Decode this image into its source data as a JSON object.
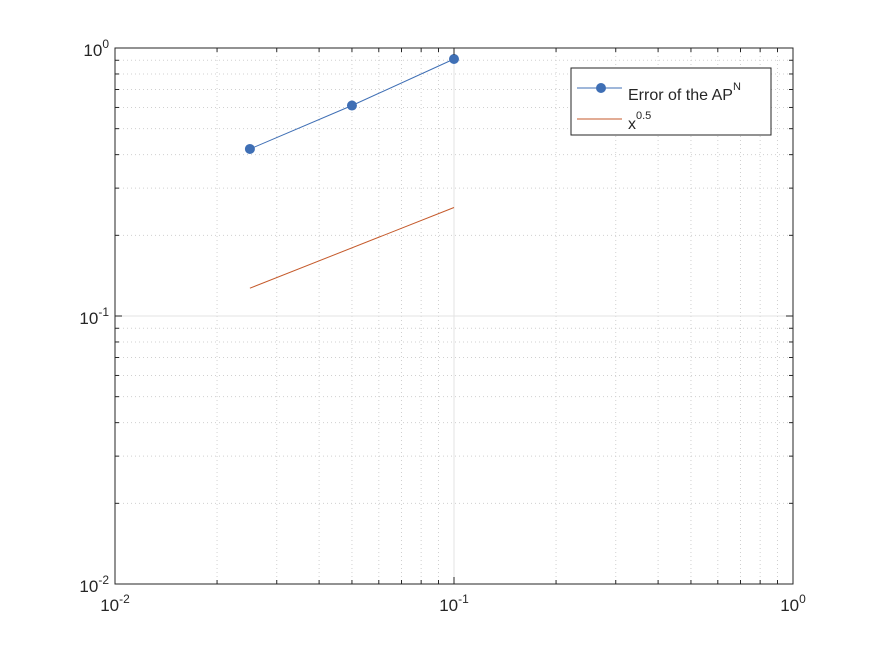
{
  "chart_data": {
    "type": "line",
    "title": "",
    "xlabel": "",
    "ylabel": "",
    "xscale": "log",
    "yscale": "log",
    "xlim": [
      0.01,
      1
    ],
    "ylim": [
      0.01,
      1
    ],
    "grid": true,
    "minor_grid": true,
    "legend_location": "top-right",
    "x_ticks": [
      {
        "value": 0.01,
        "base": "10",
        "exp": "-2"
      },
      {
        "value": 0.1,
        "base": "10",
        "exp": "-1"
      },
      {
        "value": 1,
        "base": "10",
        "exp": "0"
      }
    ],
    "y_ticks": [
      {
        "value": 0.01,
        "base": "10",
        "exp": "-2"
      },
      {
        "value": 0.1,
        "base": "10",
        "exp": "-1"
      },
      {
        "value": 1,
        "base": "10",
        "exp": "0"
      }
    ],
    "series": [
      {
        "name_main": "Error of the AP",
        "name_sup": "N",
        "color": "#3f6fb5",
        "marker": "circle",
        "x": [
          0.025,
          0.05,
          0.1
        ],
        "y": [
          0.42,
          0.61,
          0.91
        ]
      },
      {
        "name_main": "x",
        "name_sup": "0.5",
        "color": "#c55a2b",
        "marker": "none",
        "x": [
          0.025,
          0.1
        ],
        "y": [
          0.127,
          0.254
        ]
      }
    ]
  }
}
